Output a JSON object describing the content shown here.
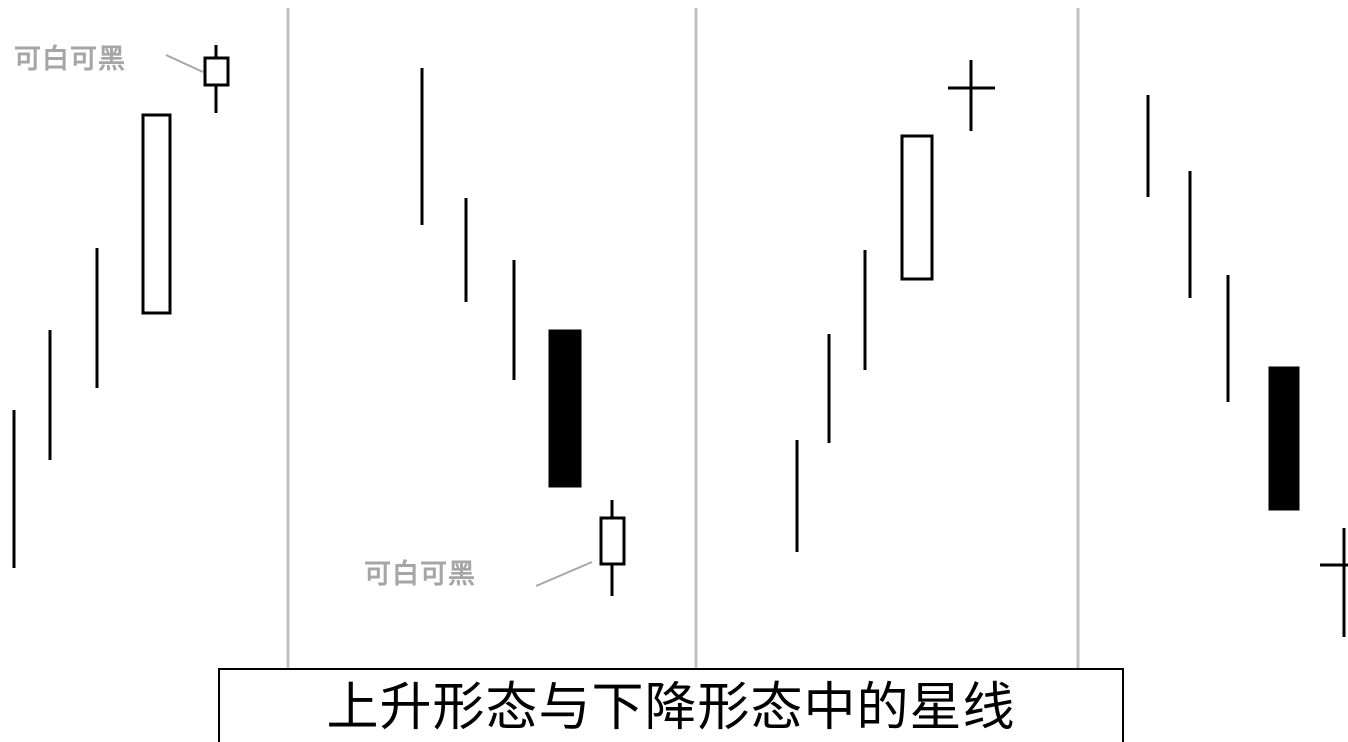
{
  "figure": {
    "caption": "上升形态与下降形态中的星线",
    "annotation_text": "可白可黑",
    "colors": {
      "line": "#000000",
      "divider": "#c0c0c0",
      "annotation": "#a6a6a6",
      "background": "#ffffff"
    }
  }
}
